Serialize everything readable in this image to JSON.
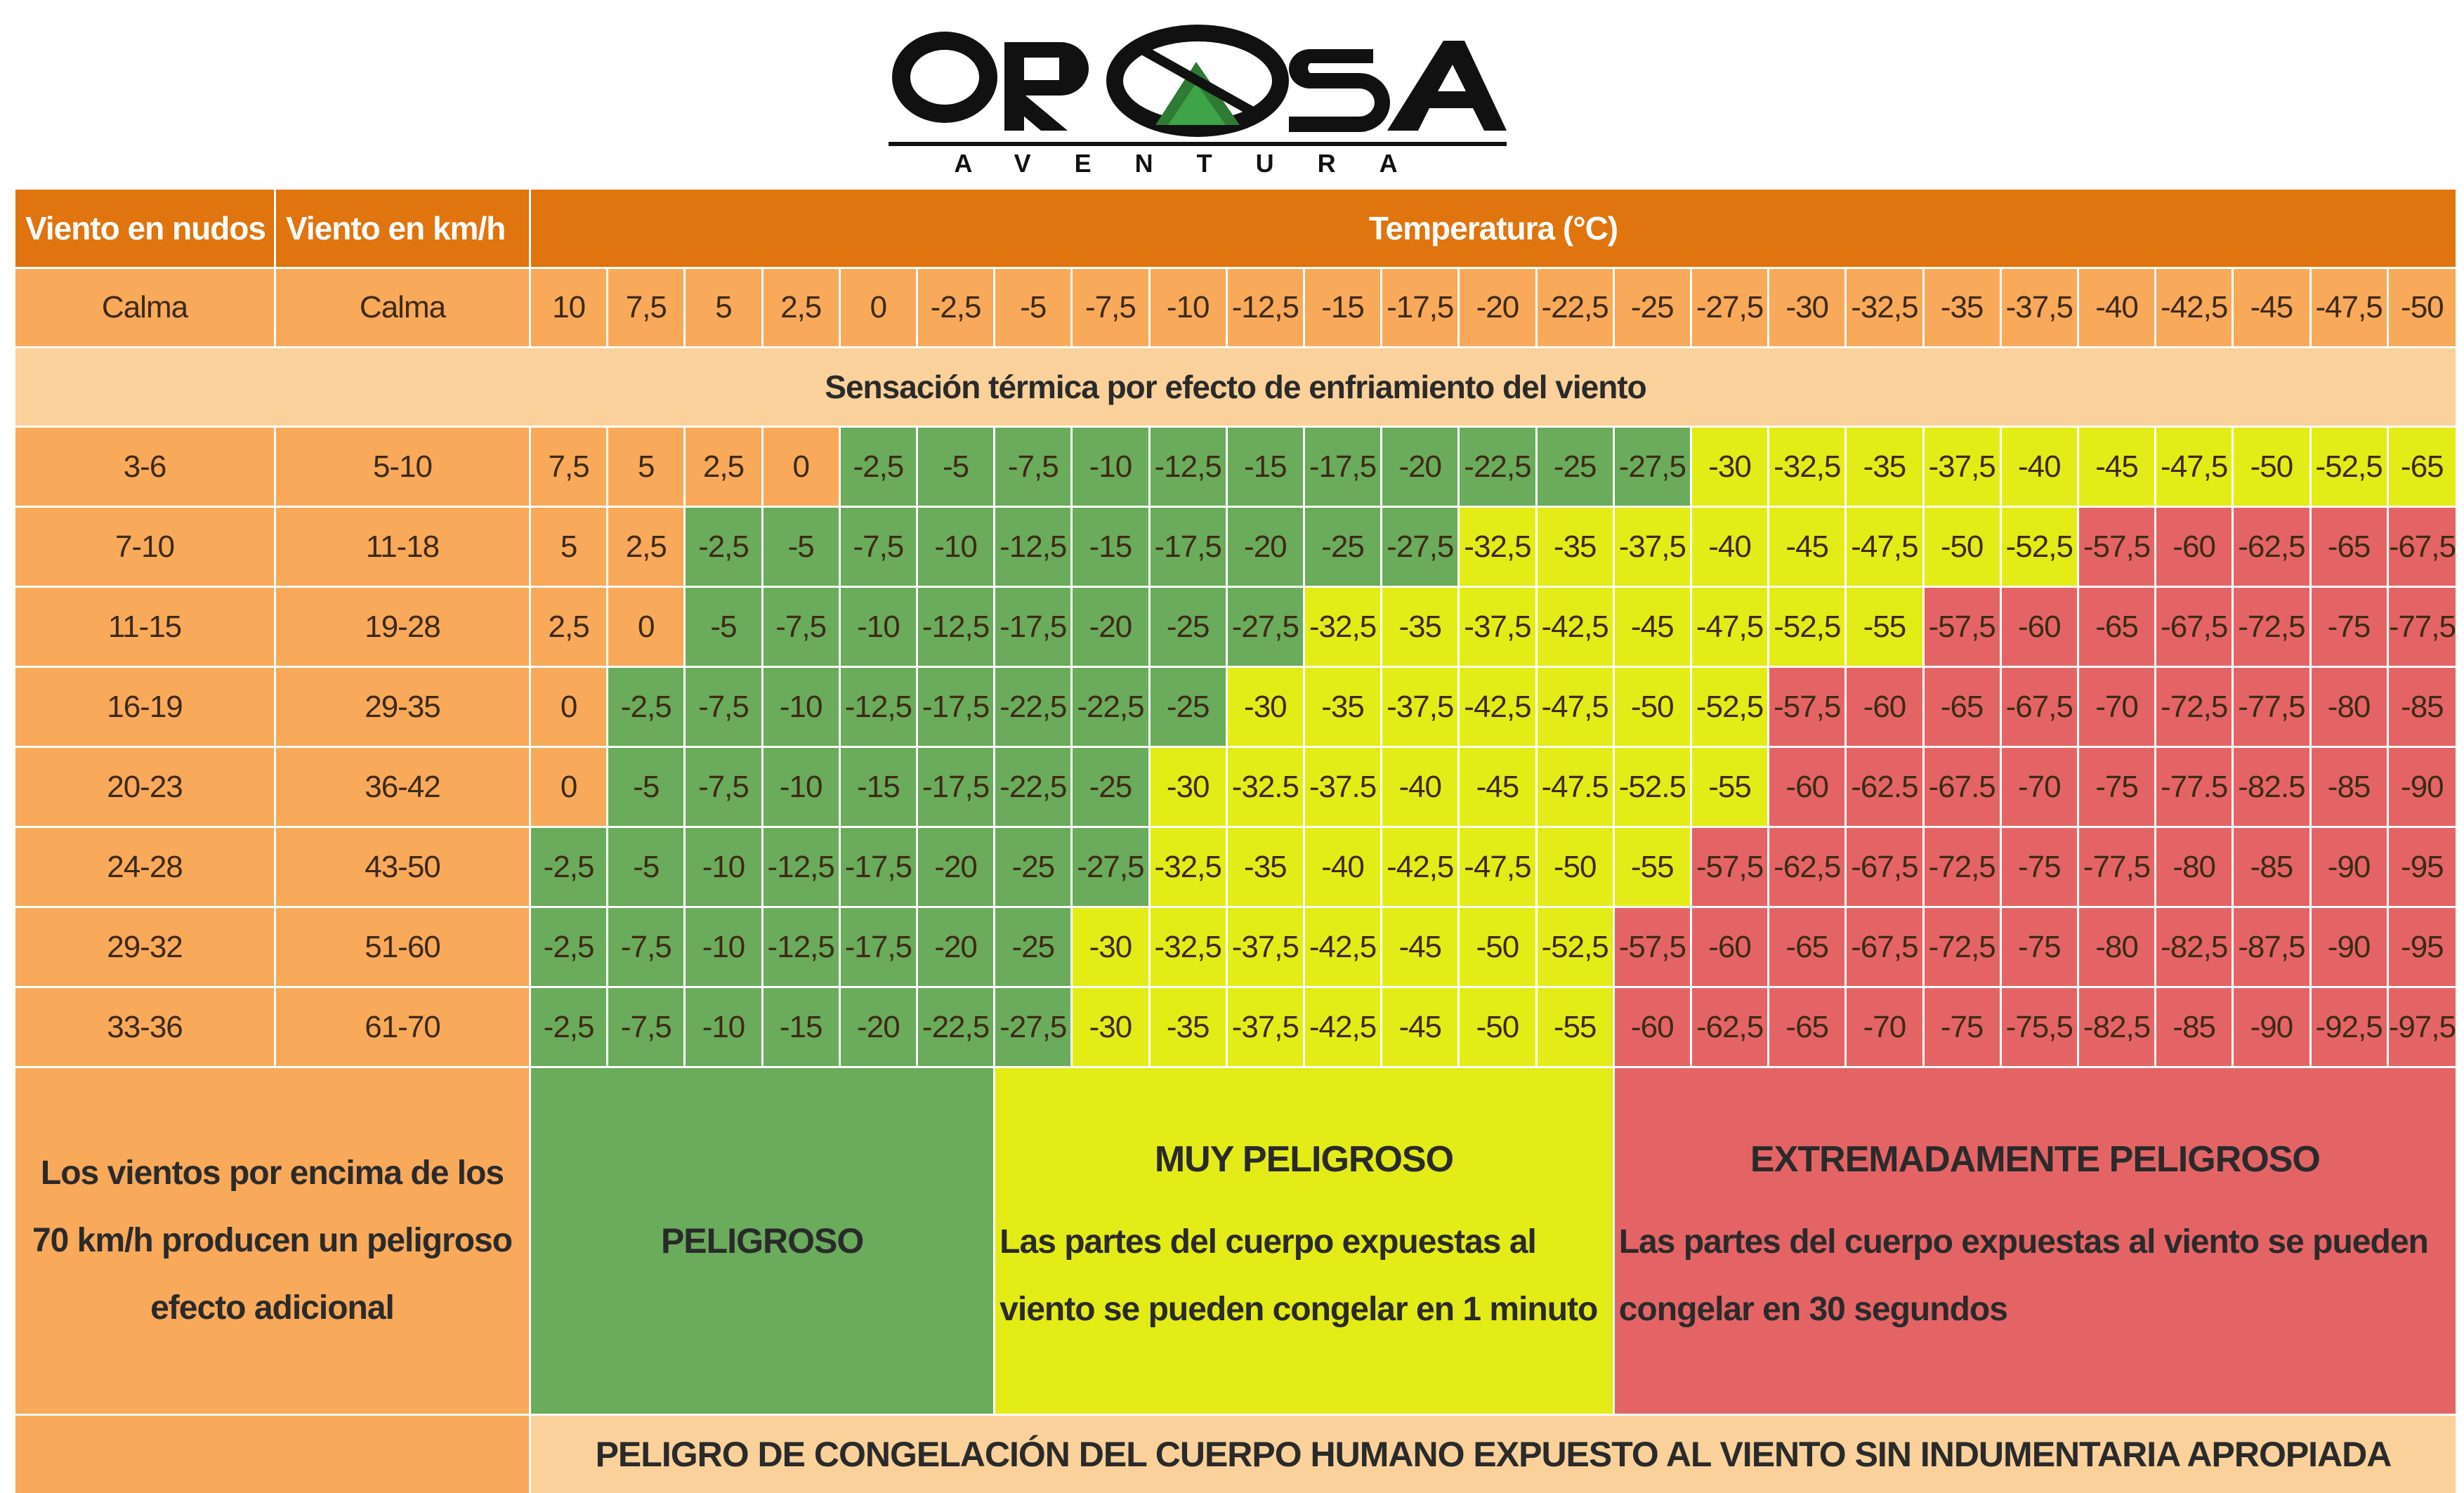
{
  "logo": {
    "brand": "OROSA",
    "subtitle": "AVENTURA"
  },
  "header": {
    "knots_label": "Viento en nudos",
    "kmh_label": "Viento en km/h",
    "temperature_label": "Temperatura (°C)"
  },
  "calm_row": {
    "knots": "Calma",
    "kmh": "Calma",
    "temperatures": [
      "10",
      "7,5",
      "5",
      "2,5",
      "0",
      "-2,5",
      "-5",
      "-7,5",
      "-10",
      "-12,5",
      "-15",
      "-17,5",
      "-20",
      "-22,5",
      "-25",
      "-27,5",
      "-30",
      "-32,5",
      "-35",
      "-37,5",
      "-40",
      "-42,5",
      "-45",
      "-47,5",
      "-50"
    ]
  },
  "subtitle": "Sensación térmica por efecto de enfriamiento del viento",
  "rows": [
    {
      "knots": "3-6",
      "kmh": "5-10",
      "values": [
        "7,5",
        "5",
        "2,5",
        "0",
        "-2,5",
        "-5",
        "-7,5",
        "-10",
        "-12,5",
        "-15",
        "-17,5",
        "-20",
        "-22,5",
        "-25",
        "-27,5",
        "-30",
        "-32,5",
        "-35",
        "-37,5",
        "-40",
        "-45",
        "-47,5",
        "-50",
        "-52,5",
        "-65"
      ],
      "zones": [
        "o",
        "o",
        "o",
        "o",
        "g",
        "g",
        "g",
        "g",
        "g",
        "g",
        "g",
        "g",
        "g",
        "g",
        "g",
        "y",
        "y",
        "y",
        "y",
        "y",
        "y",
        "y",
        "y",
        "y",
        "y"
      ]
    },
    {
      "knots": "7-10",
      "kmh": "11-18",
      "values": [
        "5",
        "2,5",
        "-2,5",
        "-5",
        "-7,5",
        "-10",
        "-12,5",
        "-15",
        "-17,5",
        "-20",
        "-25",
        "-27,5",
        "-32,5",
        "-35",
        "-37,5",
        "-40",
        "-45",
        "-47,5",
        "-50",
        "-52,5",
        "-57,5",
        "-60",
        "-62,5",
        "-65",
        "-67,5"
      ],
      "zones": [
        "o",
        "o",
        "g",
        "g",
        "g",
        "g",
        "g",
        "g",
        "g",
        "g",
        "g",
        "g",
        "y",
        "y",
        "y",
        "y",
        "y",
        "y",
        "y",
        "y",
        "r",
        "r",
        "r",
        "r",
        "r"
      ]
    },
    {
      "knots": "11-15",
      "kmh": "19-28",
      "values": [
        "2,5",
        "0",
        "-5",
        "-7,5",
        "-10",
        "-12,5",
        "-17,5",
        "-20",
        "-25",
        "-27,5",
        "-32,5",
        "-35",
        "-37,5",
        "-42,5",
        "-45",
        "-47,5",
        "-52,5",
        "-55",
        "-57,5",
        "-60",
        "-65",
        "-67,5",
        "-72,5",
        "-75",
        "-77,5"
      ],
      "zones": [
        "o",
        "o",
        "g",
        "g",
        "g",
        "g",
        "g",
        "g",
        "g",
        "g",
        "y",
        "y",
        "y",
        "y",
        "y",
        "y",
        "y",
        "y",
        "r",
        "r",
        "r",
        "r",
        "r",
        "r",
        "r"
      ]
    },
    {
      "knots": "16-19",
      "kmh": "29-35",
      "values": [
        "0",
        "-2,5",
        "-7,5",
        "-10",
        "-12,5",
        "-17,5",
        "-22,5",
        "-22,5",
        "-25",
        "-30",
        "-35",
        "-37,5",
        "-42,5",
        "-47,5",
        "-50",
        "-52,5",
        "-57,5",
        "-60",
        "-65",
        "-67,5",
        "-70",
        "-72,5",
        "-77,5",
        "-80",
        "-85"
      ],
      "zones": [
        "o",
        "g",
        "g",
        "g",
        "g",
        "g",
        "g",
        "g",
        "g",
        "y",
        "y",
        "y",
        "y",
        "y",
        "y",
        "y",
        "r",
        "r",
        "r",
        "r",
        "r",
        "r",
        "r",
        "r",
        "r"
      ]
    },
    {
      "knots": "20-23",
      "kmh": "36-42",
      "values": [
        "0",
        "-5",
        "-7,5",
        "-10",
        "-15",
        "-17,5",
        "-22,5",
        "-25",
        "-30",
        "-32.5",
        "-37.5",
        "-40",
        "-45",
        "-47.5",
        "-52.5",
        "-55",
        "-60",
        "-62.5",
        "-67.5",
        "-70",
        "-75",
        "-77.5",
        "-82.5",
        "-85",
        "-90"
      ],
      "zones": [
        "o",
        "g",
        "g",
        "g",
        "g",
        "g",
        "g",
        "g",
        "y",
        "y",
        "y",
        "y",
        "y",
        "y",
        "y",
        "y",
        "r",
        "r",
        "r",
        "r",
        "r",
        "r",
        "r",
        "r",
        "r"
      ]
    },
    {
      "knots": "24-28",
      "kmh": "43-50",
      "values": [
        "-2,5",
        "-5",
        "-10",
        "-12,5",
        "-17,5",
        "-20",
        "-25",
        "-27,5",
        "-32,5",
        "-35",
        "-40",
        "-42,5",
        "-47,5",
        "-50",
        "-55",
        "-57,5",
        "-62,5",
        "-67,5",
        "-72,5",
        "-75",
        "-77,5",
        "-80",
        "-85",
        "-90",
        "-95"
      ],
      "zones": [
        "g",
        "g",
        "g",
        "g",
        "g",
        "g",
        "g",
        "g",
        "y",
        "y",
        "y",
        "y",
        "y",
        "y",
        "y",
        "r",
        "r",
        "r",
        "r",
        "r",
        "r",
        "r",
        "r",
        "r",
        "r"
      ]
    },
    {
      "knots": "29-32",
      "kmh": "51-60",
      "values": [
        "-2,5",
        "-7,5",
        "-10",
        "-12,5",
        "-17,5",
        "-20",
        "-25",
        "-30",
        "-32,5",
        "-37,5",
        "-42,5",
        "-45",
        "-50",
        "-52,5",
        "-57,5",
        "-60",
        "-65",
        "-67,5",
        "-72,5",
        "-75",
        "-80",
        "-82,5",
        "-87,5",
        "-90",
        "-95"
      ],
      "zones": [
        "g",
        "g",
        "g",
        "g",
        "g",
        "g",
        "g",
        "y",
        "y",
        "y",
        "y",
        "y",
        "y",
        "y",
        "r",
        "r",
        "r",
        "r",
        "r",
        "r",
        "r",
        "r",
        "r",
        "r",
        "r"
      ]
    },
    {
      "knots": "33-36",
      "kmh": "61-70",
      "values": [
        "-2,5",
        "-7,5",
        "-10",
        "-15",
        "-20",
        "-22,5",
        "-27,5",
        "-30",
        "-35",
        "-37,5",
        "-42,5",
        "-45",
        "-50",
        "-55",
        "-60",
        "-62,5",
        "-65",
        "-70",
        "-75",
        "-75,5",
        "-82,5",
        "-85",
        "-90",
        "-92,5",
        "-97,5"
      ],
      "zones": [
        "g",
        "g",
        "g",
        "g",
        "g",
        "g",
        "g",
        "y",
        "y",
        "y",
        "y",
        "y",
        "y",
        "y",
        "r",
        "r",
        "r",
        "r",
        "r",
        "r",
        "r",
        "r",
        "r",
        "r",
        "r"
      ]
    }
  ],
  "legend": {
    "left_note": "Los vientos por encima de los 70 km/h producen un peligroso efecto adicional",
    "dangerous": "PELIGROSO",
    "very_dangerous_title": "MUY PELIGROSO",
    "very_dangerous_desc": "Las partes del cuerpo expuestas al viento se pueden congelar en 1 minuto",
    "extreme_title": "EXTREMADAMENTE PELIGROSO",
    "extreme_desc": "Las partes del cuerpo expuestas al viento se pueden congelar en 30 segundos"
  },
  "footer": "PELIGRO DE CONGELACIÓN DEL CUERPO HUMANO EXPUESTO AL VIENTO SIN INDUMENTARIA APROPIADA",
  "colors": {
    "header_orange": "#e0740e",
    "row_orange": "#f8a95a",
    "pale_orange": "#fad19b",
    "danger_green": "#6aab5c",
    "very_danger_yellow": "#e3ec17",
    "extreme_red": "#e46466"
  }
}
